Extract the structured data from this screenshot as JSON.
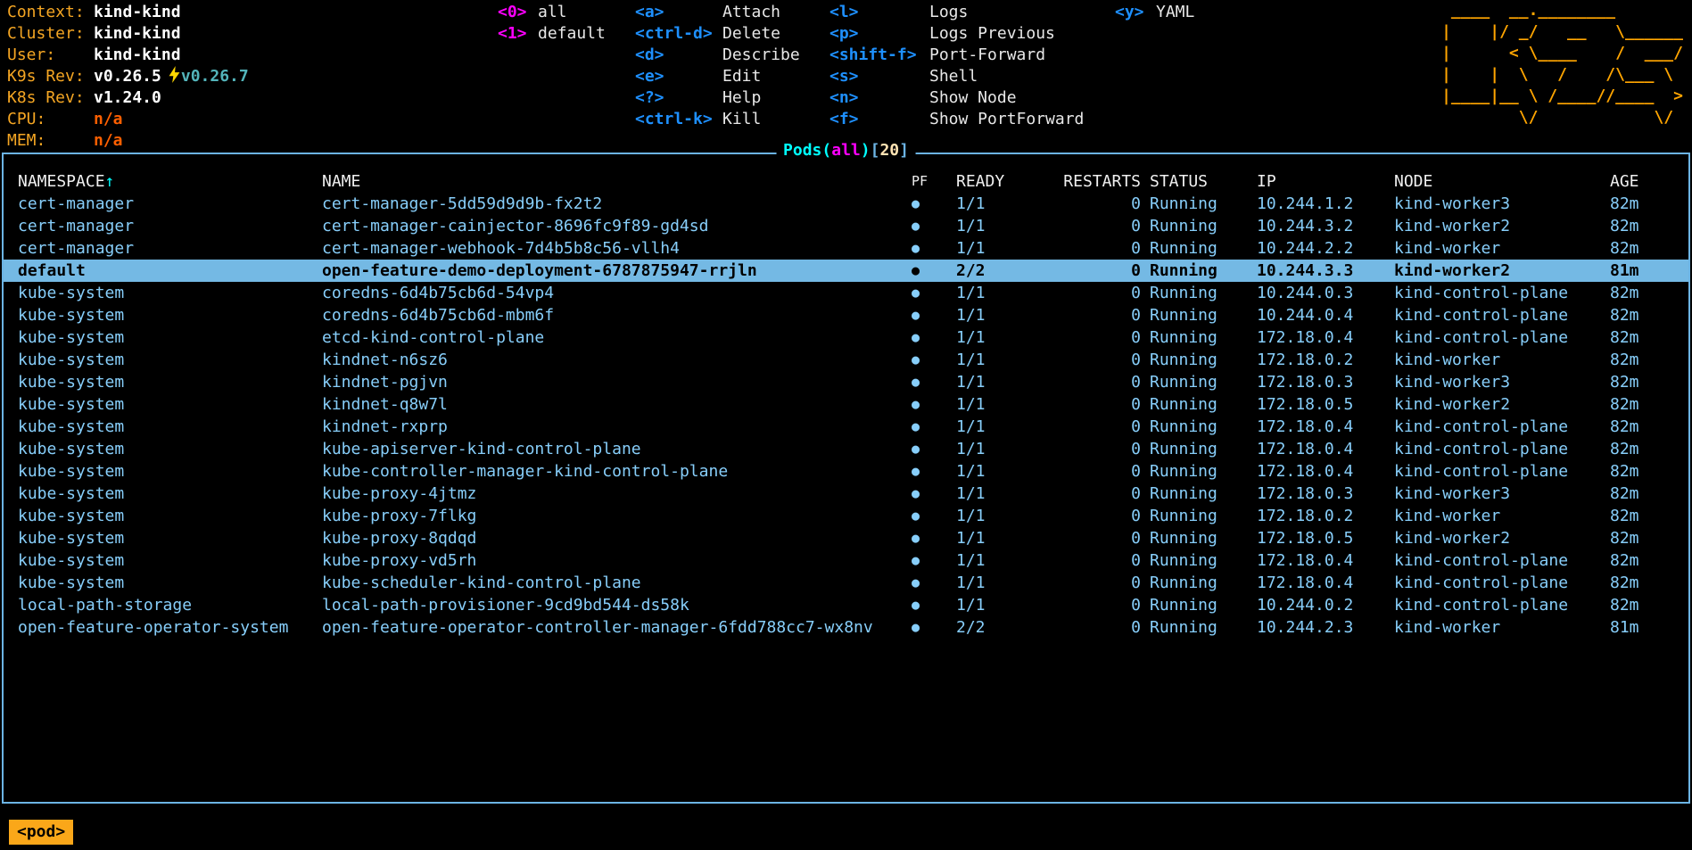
{
  "app_title": "k9s",
  "colors": {
    "background": "#000000",
    "label_orange": "#f5a623",
    "value_white": "#ffffff",
    "na_orange_red": "#ff5f00",
    "upgrade_teal": "#53b4ba",
    "bolt_gold": "#ffd700",
    "numeric_key_magenta": "#ff00ff",
    "action_key_blue": "#1e90ff",
    "logo_orange": "#ffa500",
    "frame_border_blue": "#6cb4e4",
    "title_aqua": "#00ffff",
    "scope_magenta": "#ff00ff",
    "count_cream": "#ffe3b3",
    "row_text_skyblue": "#87cefa",
    "selected_row_bg": "#74b9e4",
    "crumb_orange": "#faa719"
  },
  "info": {
    "rows": [
      {
        "label": "Context:",
        "value": "kind-kind"
      },
      {
        "label": "Cluster:",
        "value": "kind-kind"
      },
      {
        "label": "User:",
        "value": "kind-kind"
      },
      {
        "label": "K9s Rev:",
        "value": "v0.26.5",
        "upgrade": "v0.26.7",
        "upgrade_icon": "lightning-bolt-icon"
      },
      {
        "label": "K8s Rev:",
        "value": "v1.24.0"
      },
      {
        "label": "CPU:",
        "value": "n/a",
        "na": true
      },
      {
        "label": "MEM:",
        "value": "n/a",
        "na": true
      }
    ]
  },
  "hotkeys": {
    "columns": [
      {
        "items": [
          {
            "key": "<0>",
            "label": "all"
          },
          {
            "key": "<1>",
            "label": "default"
          }
        ]
      },
      {
        "items": [
          {
            "key": "<a>",
            "label": "Attach"
          },
          {
            "key": "<ctrl-d>",
            "label": "Delete"
          },
          {
            "key": "<d>",
            "label": "Describe"
          },
          {
            "key": "<e>",
            "label": "Edit"
          },
          {
            "key": "<?>",
            "label": "Help"
          },
          {
            "key": "<ctrl-k>",
            "label": "Kill"
          }
        ]
      },
      {
        "items": [
          {
            "key": "<l>",
            "label": "Logs"
          },
          {
            "key": "<p>",
            "label": "Logs Previous"
          },
          {
            "key": "<shift-f>",
            "label": "Port-Forward"
          },
          {
            "key": "<s>",
            "label": "Shell"
          },
          {
            "key": "<n>",
            "label": "Show Node"
          },
          {
            "key": "<f>",
            "label": "Show PortForward"
          }
        ]
      },
      {
        "items": [
          {
            "key": "<y>",
            "label": "YAML"
          }
        ]
      }
    ]
  },
  "logo_lines": [
    " ____  __.________",
    "|    |/ _/   __   \\______",
    "|      < \\____    /  ___/",
    "|    |  \\   /    /\\___ \\",
    "|____|__ \\ /____//____  >",
    "        \\/            \\/"
  ],
  "table": {
    "title": {
      "resource": "Pods",
      "paren_open": "(",
      "scope": "all",
      "paren_close": ")",
      "bracket_open": "[",
      "count": "20",
      "bracket_close": "]"
    },
    "columns": [
      "NAMESPACE",
      "NAME",
      "PF",
      "READY",
      "RESTARTS",
      "STATUS",
      "IP",
      "NODE",
      "AGE"
    ],
    "sort_column": "NAMESPACE",
    "sort_icon": "↑",
    "pf_icon": "●",
    "selected_index": 3,
    "rows": [
      {
        "namespace": "cert-manager",
        "name": "cert-manager-5dd59d9d9b-fx2t2",
        "pf": "●",
        "ready": "1/1",
        "restarts": "0",
        "status": "Running",
        "ip": "10.244.1.2",
        "node": "kind-worker3",
        "age": "82m"
      },
      {
        "namespace": "cert-manager",
        "name": "cert-manager-cainjector-8696fc9f89-gd4sd",
        "pf": "●",
        "ready": "1/1",
        "restarts": "0",
        "status": "Running",
        "ip": "10.244.3.2",
        "node": "kind-worker2",
        "age": "82m"
      },
      {
        "namespace": "cert-manager",
        "name": "cert-manager-webhook-7d4b5b8c56-vllh4",
        "pf": "●",
        "ready": "1/1",
        "restarts": "0",
        "status": "Running",
        "ip": "10.244.2.2",
        "node": "kind-worker",
        "age": "82m"
      },
      {
        "namespace": "default",
        "name": "open-feature-demo-deployment-6787875947-rrjln",
        "pf": "●",
        "ready": "2/2",
        "restarts": "0",
        "status": "Running",
        "ip": "10.244.3.3",
        "node": "kind-worker2",
        "age": "81m"
      },
      {
        "namespace": "kube-system",
        "name": "coredns-6d4b75cb6d-54vp4",
        "pf": "●",
        "ready": "1/1",
        "restarts": "0",
        "status": "Running",
        "ip": "10.244.0.3",
        "node": "kind-control-plane",
        "age": "82m"
      },
      {
        "namespace": "kube-system",
        "name": "coredns-6d4b75cb6d-mbm6f",
        "pf": "●",
        "ready": "1/1",
        "restarts": "0",
        "status": "Running",
        "ip": "10.244.0.4",
        "node": "kind-control-plane",
        "age": "82m"
      },
      {
        "namespace": "kube-system",
        "name": "etcd-kind-control-plane",
        "pf": "●",
        "ready": "1/1",
        "restarts": "0",
        "status": "Running",
        "ip": "172.18.0.4",
        "node": "kind-control-plane",
        "age": "82m"
      },
      {
        "namespace": "kube-system",
        "name": "kindnet-n6sz6",
        "pf": "●",
        "ready": "1/1",
        "restarts": "0",
        "status": "Running",
        "ip": "172.18.0.2",
        "node": "kind-worker",
        "age": "82m"
      },
      {
        "namespace": "kube-system",
        "name": "kindnet-pgjvn",
        "pf": "●",
        "ready": "1/1",
        "restarts": "0",
        "status": "Running",
        "ip": "172.18.0.3",
        "node": "kind-worker3",
        "age": "82m"
      },
      {
        "namespace": "kube-system",
        "name": "kindnet-q8w7l",
        "pf": "●",
        "ready": "1/1",
        "restarts": "0",
        "status": "Running",
        "ip": "172.18.0.5",
        "node": "kind-worker2",
        "age": "82m"
      },
      {
        "namespace": "kube-system",
        "name": "kindnet-rxprp",
        "pf": "●",
        "ready": "1/1",
        "restarts": "0",
        "status": "Running",
        "ip": "172.18.0.4",
        "node": "kind-control-plane",
        "age": "82m"
      },
      {
        "namespace": "kube-system",
        "name": "kube-apiserver-kind-control-plane",
        "pf": "●",
        "ready": "1/1",
        "restarts": "0",
        "status": "Running",
        "ip": "172.18.0.4",
        "node": "kind-control-plane",
        "age": "82m"
      },
      {
        "namespace": "kube-system",
        "name": "kube-controller-manager-kind-control-plane",
        "pf": "●",
        "ready": "1/1",
        "restarts": "0",
        "status": "Running",
        "ip": "172.18.0.4",
        "node": "kind-control-plane",
        "age": "82m"
      },
      {
        "namespace": "kube-system",
        "name": "kube-proxy-4jtmz",
        "pf": "●",
        "ready": "1/1",
        "restarts": "0",
        "status": "Running",
        "ip": "172.18.0.3",
        "node": "kind-worker3",
        "age": "82m"
      },
      {
        "namespace": "kube-system",
        "name": "kube-proxy-7flkg",
        "pf": "●",
        "ready": "1/1",
        "restarts": "0",
        "status": "Running",
        "ip": "172.18.0.2",
        "node": "kind-worker",
        "age": "82m"
      },
      {
        "namespace": "kube-system",
        "name": "kube-proxy-8qdqd",
        "pf": "●",
        "ready": "1/1",
        "restarts": "0",
        "status": "Running",
        "ip": "172.18.0.5",
        "node": "kind-worker2",
        "age": "82m"
      },
      {
        "namespace": "kube-system",
        "name": "kube-proxy-vd5rh",
        "pf": "●",
        "ready": "1/1",
        "restarts": "0",
        "status": "Running",
        "ip": "172.18.0.4",
        "node": "kind-control-plane",
        "age": "82m"
      },
      {
        "namespace": "kube-system",
        "name": "kube-scheduler-kind-control-plane",
        "pf": "●",
        "ready": "1/1",
        "restarts": "0",
        "status": "Running",
        "ip": "172.18.0.4",
        "node": "kind-control-plane",
        "age": "82m"
      },
      {
        "namespace": "local-path-storage",
        "name": "local-path-provisioner-9cd9bd544-ds58k",
        "pf": "●",
        "ready": "1/1",
        "restarts": "0",
        "status": "Running",
        "ip": "10.244.0.2",
        "node": "kind-control-plane",
        "age": "82m"
      },
      {
        "namespace": "open-feature-operator-system",
        "name": "open-feature-operator-controller-manager-6fdd788cc7-wx8nv",
        "pf": "●",
        "ready": "2/2",
        "restarts": "0",
        "status": "Running",
        "ip": "10.244.2.3",
        "node": "kind-worker",
        "age": "81m"
      }
    ]
  },
  "footer": {
    "crumb": "<pod>"
  }
}
